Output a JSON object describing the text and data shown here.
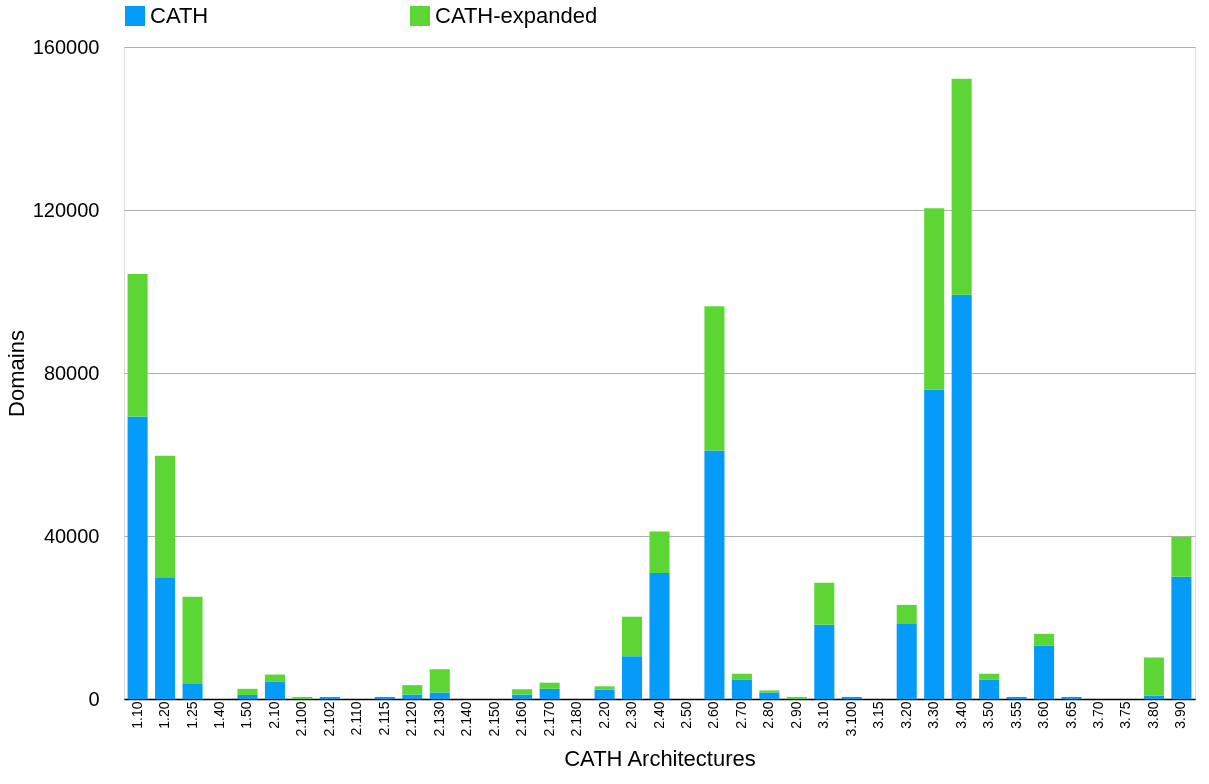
{
  "chart_data": {
    "type": "bar",
    "stacked": true,
    "xlabel": "CATH Architectures",
    "ylabel": "Domains",
    "categories": [
      "1.10",
      "1.20",
      "1.25",
      "1.40",
      "1.50",
      "2.10",
      "2.100",
      "2.102",
      "2.110",
      "2.115",
      "2.120",
      "2.130",
      "2.140",
      "2.150",
      "2.160",
      "2.170",
      "2.180",
      "2.20",
      "2.30",
      "2.40",
      "2.50",
      "2.60",
      "2.70",
      "2.80",
      "2.90",
      "3.10",
      "3.100",
      "3.15",
      "3.20",
      "3.30",
      "3.40",
      "3.50",
      "3.55",
      "3.60",
      "3.65",
      "3.70",
      "3.75",
      "3.80",
      "3.90"
    ],
    "series": [
      {
        "name": "CATH",
        "color": "#059cf9",
        "values": [
          69300,
          29900,
          3700,
          0,
          1000,
          4200,
          0,
          500,
          0,
          500,
          1100,
          1600,
          0,
          0,
          1100,
          2500,
          0,
          2300,
          10500,
          30900,
          0,
          61000,
          4700,
          1600,
          0,
          18200,
          500,
          0,
          18400,
          75900,
          99200,
          4700,
          500,
          13100,
          500,
          0,
          0,
          800,
          30000
        ]
      },
      {
        "name": "CATH-expanded",
        "color": "#5cd634",
        "values": [
          35000,
          29800,
          21400,
          0,
          1500,
          1800,
          500,
          0,
          0,
          0,
          2300,
          5700,
          0,
          0,
          1300,
          1500,
          0,
          800,
          9700,
          10200,
          0,
          35400,
          1500,
          500,
          500,
          10300,
          0,
          0,
          4700,
          44500,
          53000,
          1500,
          0,
          2900,
          0,
          0,
          0,
          9400,
          9800
        ]
      }
    ],
    "ylim": [
      0,
      160000
    ],
    "yticks": [
      0,
      40000,
      80000,
      120000,
      160000
    ],
    "grid": "y",
    "legend": "top"
  }
}
